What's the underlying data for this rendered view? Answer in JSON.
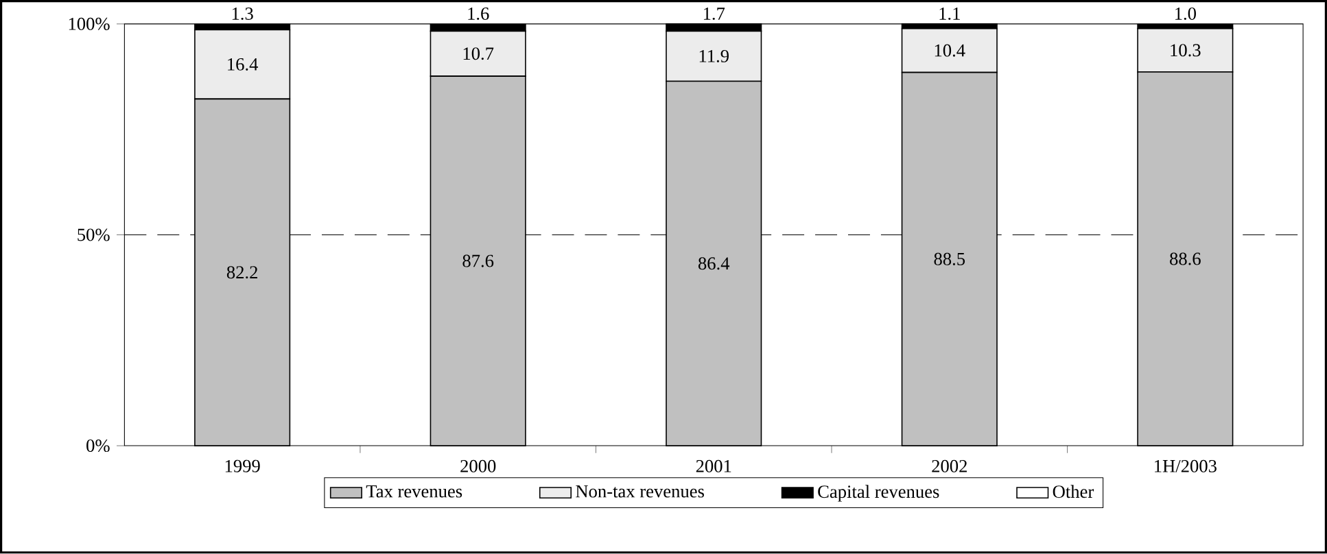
{
  "chart_data": {
    "type": "bar",
    "stacked": true,
    "categories": [
      "1999",
      "2000",
      "2001",
      "2002",
      "1H/2003"
    ],
    "series": [
      {
        "name": "Tax revenues",
        "color": "#c0c0c0",
        "values": [
          82.2,
          87.6,
          86.4,
          88.5,
          88.6
        ],
        "value_labels": [
          "82.2",
          "87.6",
          "86.4",
          "88.5",
          "88.6"
        ]
      },
      {
        "name": "Non-tax revenues",
        "color": "#ececec",
        "values": [
          16.4,
          10.7,
          11.9,
          10.4,
          10.3
        ],
        "value_labels": [
          "16.4",
          "10.7",
          "11.9",
          "10.4",
          "10.3"
        ]
      },
      {
        "name": "Capital revenues",
        "color": "#000000",
        "values": [
          1.3,
          1.6,
          1.7,
          1.1,
          1.0
        ],
        "value_labels": [
          "1.3",
          "1.6",
          "1.7",
          "1.1",
          "1.0"
        ]
      },
      {
        "name": "Other",
        "color": "#ffffff",
        "values": [
          null,
          null,
          null,
          null,
          null
        ]
      }
    ],
    "ylim": [
      0,
      100
    ],
    "yticks": [
      {
        "value": 0,
        "label": "0%"
      },
      {
        "value": 50,
        "label": "50%"
      },
      {
        "value": 100,
        "label": "100%"
      }
    ],
    "ref_lines": [
      {
        "axis": "y",
        "value": 50,
        "color": "#000000",
        "line_style": "dashed"
      }
    ],
    "grid": false,
    "legend": "bottom"
  }
}
